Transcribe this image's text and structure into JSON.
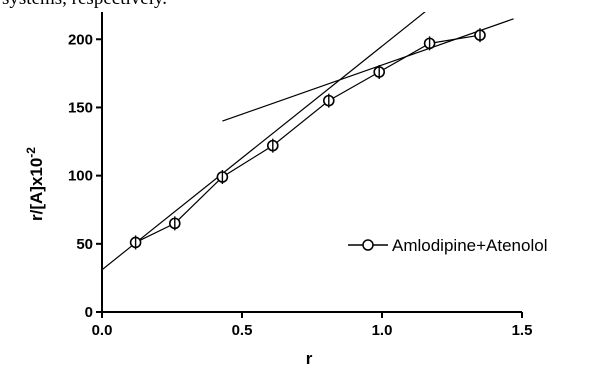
{
  "caption_fragment": "systems, respectively.",
  "chart_data": {
    "type": "scatter",
    "title": "",
    "xlabel": "r",
    "ylabel": "r/[A]x10",
    "ylabel_superscript": "-2",
    "xlim": [
      0,
      1.5
    ],
    "ylim": [
      0,
      220
    ],
    "x_ticks": [
      0.0,
      0.5,
      1.0,
      1.5
    ],
    "x_tick_labels": [
      "0.0",
      "0.5",
      "1.0",
      "1.5"
    ],
    "y_ticks": [
      0,
      50,
      100,
      150,
      200
    ],
    "y_tick_labels": [
      "0",
      "50",
      "100",
      "150",
      "200"
    ],
    "grid": false,
    "legend_position": "right",
    "series": [
      {
        "name": "Amlodipine+Atenolol",
        "marker": "open-circle-with-errorbar",
        "color": "#000000",
        "x": [
          0.12,
          0.26,
          0.43,
          0.61,
          0.81,
          0.99,
          1.17,
          1.35
        ],
        "y": [
          51,
          65,
          99,
          122,
          155,
          176,
          197,
          203
        ]
      }
    ],
    "fit_lines": [
      {
        "x1": 0.0,
        "y1": 31,
        "x2": 1.22,
        "y2": 231
      },
      {
        "x1": 0.43,
        "y1": 140,
        "x2": 1.47,
        "y2": 215
      }
    ]
  }
}
